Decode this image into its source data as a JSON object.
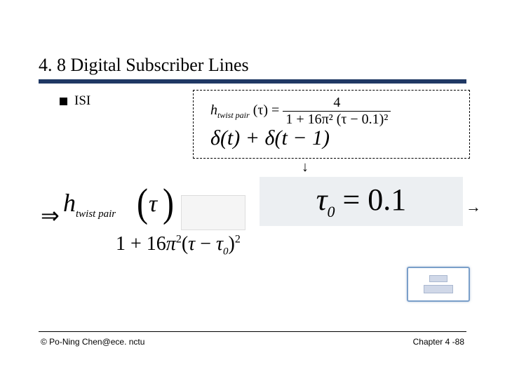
{
  "title": "4. 8 Digital Subscriber Lines",
  "bullet": {
    "label": "ISI"
  },
  "equations": {
    "htwist_small": {
      "lhs_sym": "h",
      "lhs_sub": "twist pair",
      "lhs_arg": "(τ) =",
      "numerator": "4",
      "denominator": "1 + 16π² (τ − 0.1)²"
    },
    "delta_line": "δ(t) + δ(t − 1)",
    "imply": "⇒",
    "big_h_sym": "h",
    "big_h_sub": "twist pair",
    "big_tau": "τ",
    "tau0_line": "τ₀ = 0.1",
    "denominator_big": {
      "prefix": "1 + 16",
      "pi": "π",
      "exp1": "2",
      "open": "(",
      "tau": "τ",
      "minus": " − ",
      "tau0": "τ",
      "tau0_sub": "0",
      "close": ")",
      "exp2": "2"
    }
  },
  "colors": {
    "title_rule": "#1f3864",
    "tau0_bg": "#eceff2",
    "preview_border": "#7a9fc9"
  },
  "footer": {
    "left": "© Po-Ning Chen@ece. nctu",
    "right": "Chapter 4 -88"
  }
}
